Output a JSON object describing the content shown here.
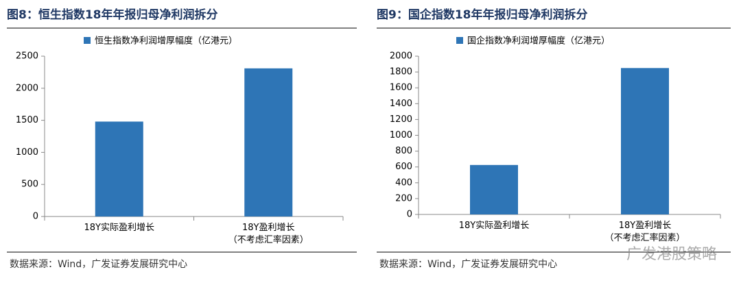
{
  "chart_data": [
    {
      "type": "bar",
      "title": "图8：恒生指数18年年报归母净利润拆分",
      "categories": [
        "18Y实际盈利增长",
        "18Y盈利增长\n（不考虑汇率因素）"
      ],
      "series": [
        {
          "name": "恒生指数净利润增厚幅度（亿港元）",
          "color": "#2e75b6",
          "values": [
            1480,
            2310
          ]
        }
      ],
      "ylim": [
        0,
        2500
      ],
      "yticks": [
        0,
        500,
        1000,
        1500,
        2000,
        2500
      ],
      "source": "数据来源：Wind，广发证券发展研究中心"
    },
    {
      "type": "bar",
      "title": "图9：国企指数18年年报归母净利润拆分",
      "categories": [
        "18Y实际盈利增长",
        "18Y盈利增长\n（不考虑汇率因素）"
      ],
      "series": [
        {
          "name": "国企指数净利润增厚幅度（亿港元）",
          "color": "#2e75b6",
          "values": [
            625,
            1850
          ]
        }
      ],
      "ylim": [
        0,
        2000
      ],
      "yticks": [
        0,
        200,
        400,
        600,
        800,
        1000,
        1200,
        1400,
        1600,
        1800,
        2000
      ],
      "source": "数据来源：Wind，广发证券发展研究中心"
    }
  ],
  "watermark": "广发港股策略"
}
